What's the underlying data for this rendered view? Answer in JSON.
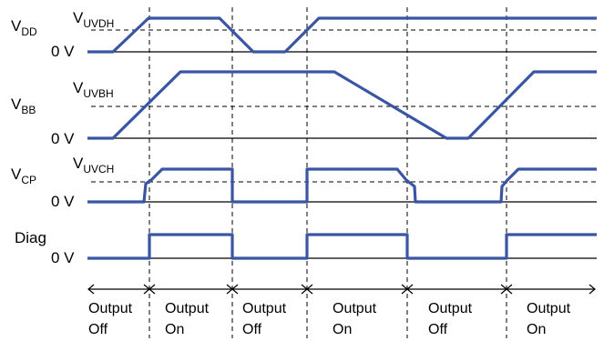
{
  "signals": [
    {
      "name": "V",
      "sub": "DD",
      "zero_label": "0 V",
      "threshold": {
        "name": "V",
        "sub": "UVDH"
      }
    },
    {
      "name": "V",
      "sub": "BB",
      "zero_label": "0 V",
      "threshold": {
        "name": "V",
        "sub": "UVBH"
      }
    },
    {
      "name": "V",
      "sub": "CP",
      "zero_label": "0 V",
      "threshold": {
        "name": "V",
        "sub": "UVCH"
      }
    },
    {
      "name": "Diag",
      "sub": "",
      "zero_label": "0 V",
      "threshold": null
    }
  ],
  "phases": [
    {
      "line1": "Output",
      "line2": "Off"
    },
    {
      "line1": "Output",
      "line2": "On"
    },
    {
      "line1": "Output",
      "line2": "Off"
    },
    {
      "line1": "Output",
      "line2": "On"
    },
    {
      "line1": "Output",
      "line2": "Off"
    },
    {
      "line1": "Output",
      "line2": "On"
    }
  ],
  "colors": {
    "signal": "#3a55a4",
    "axis": "#000000"
  }
}
